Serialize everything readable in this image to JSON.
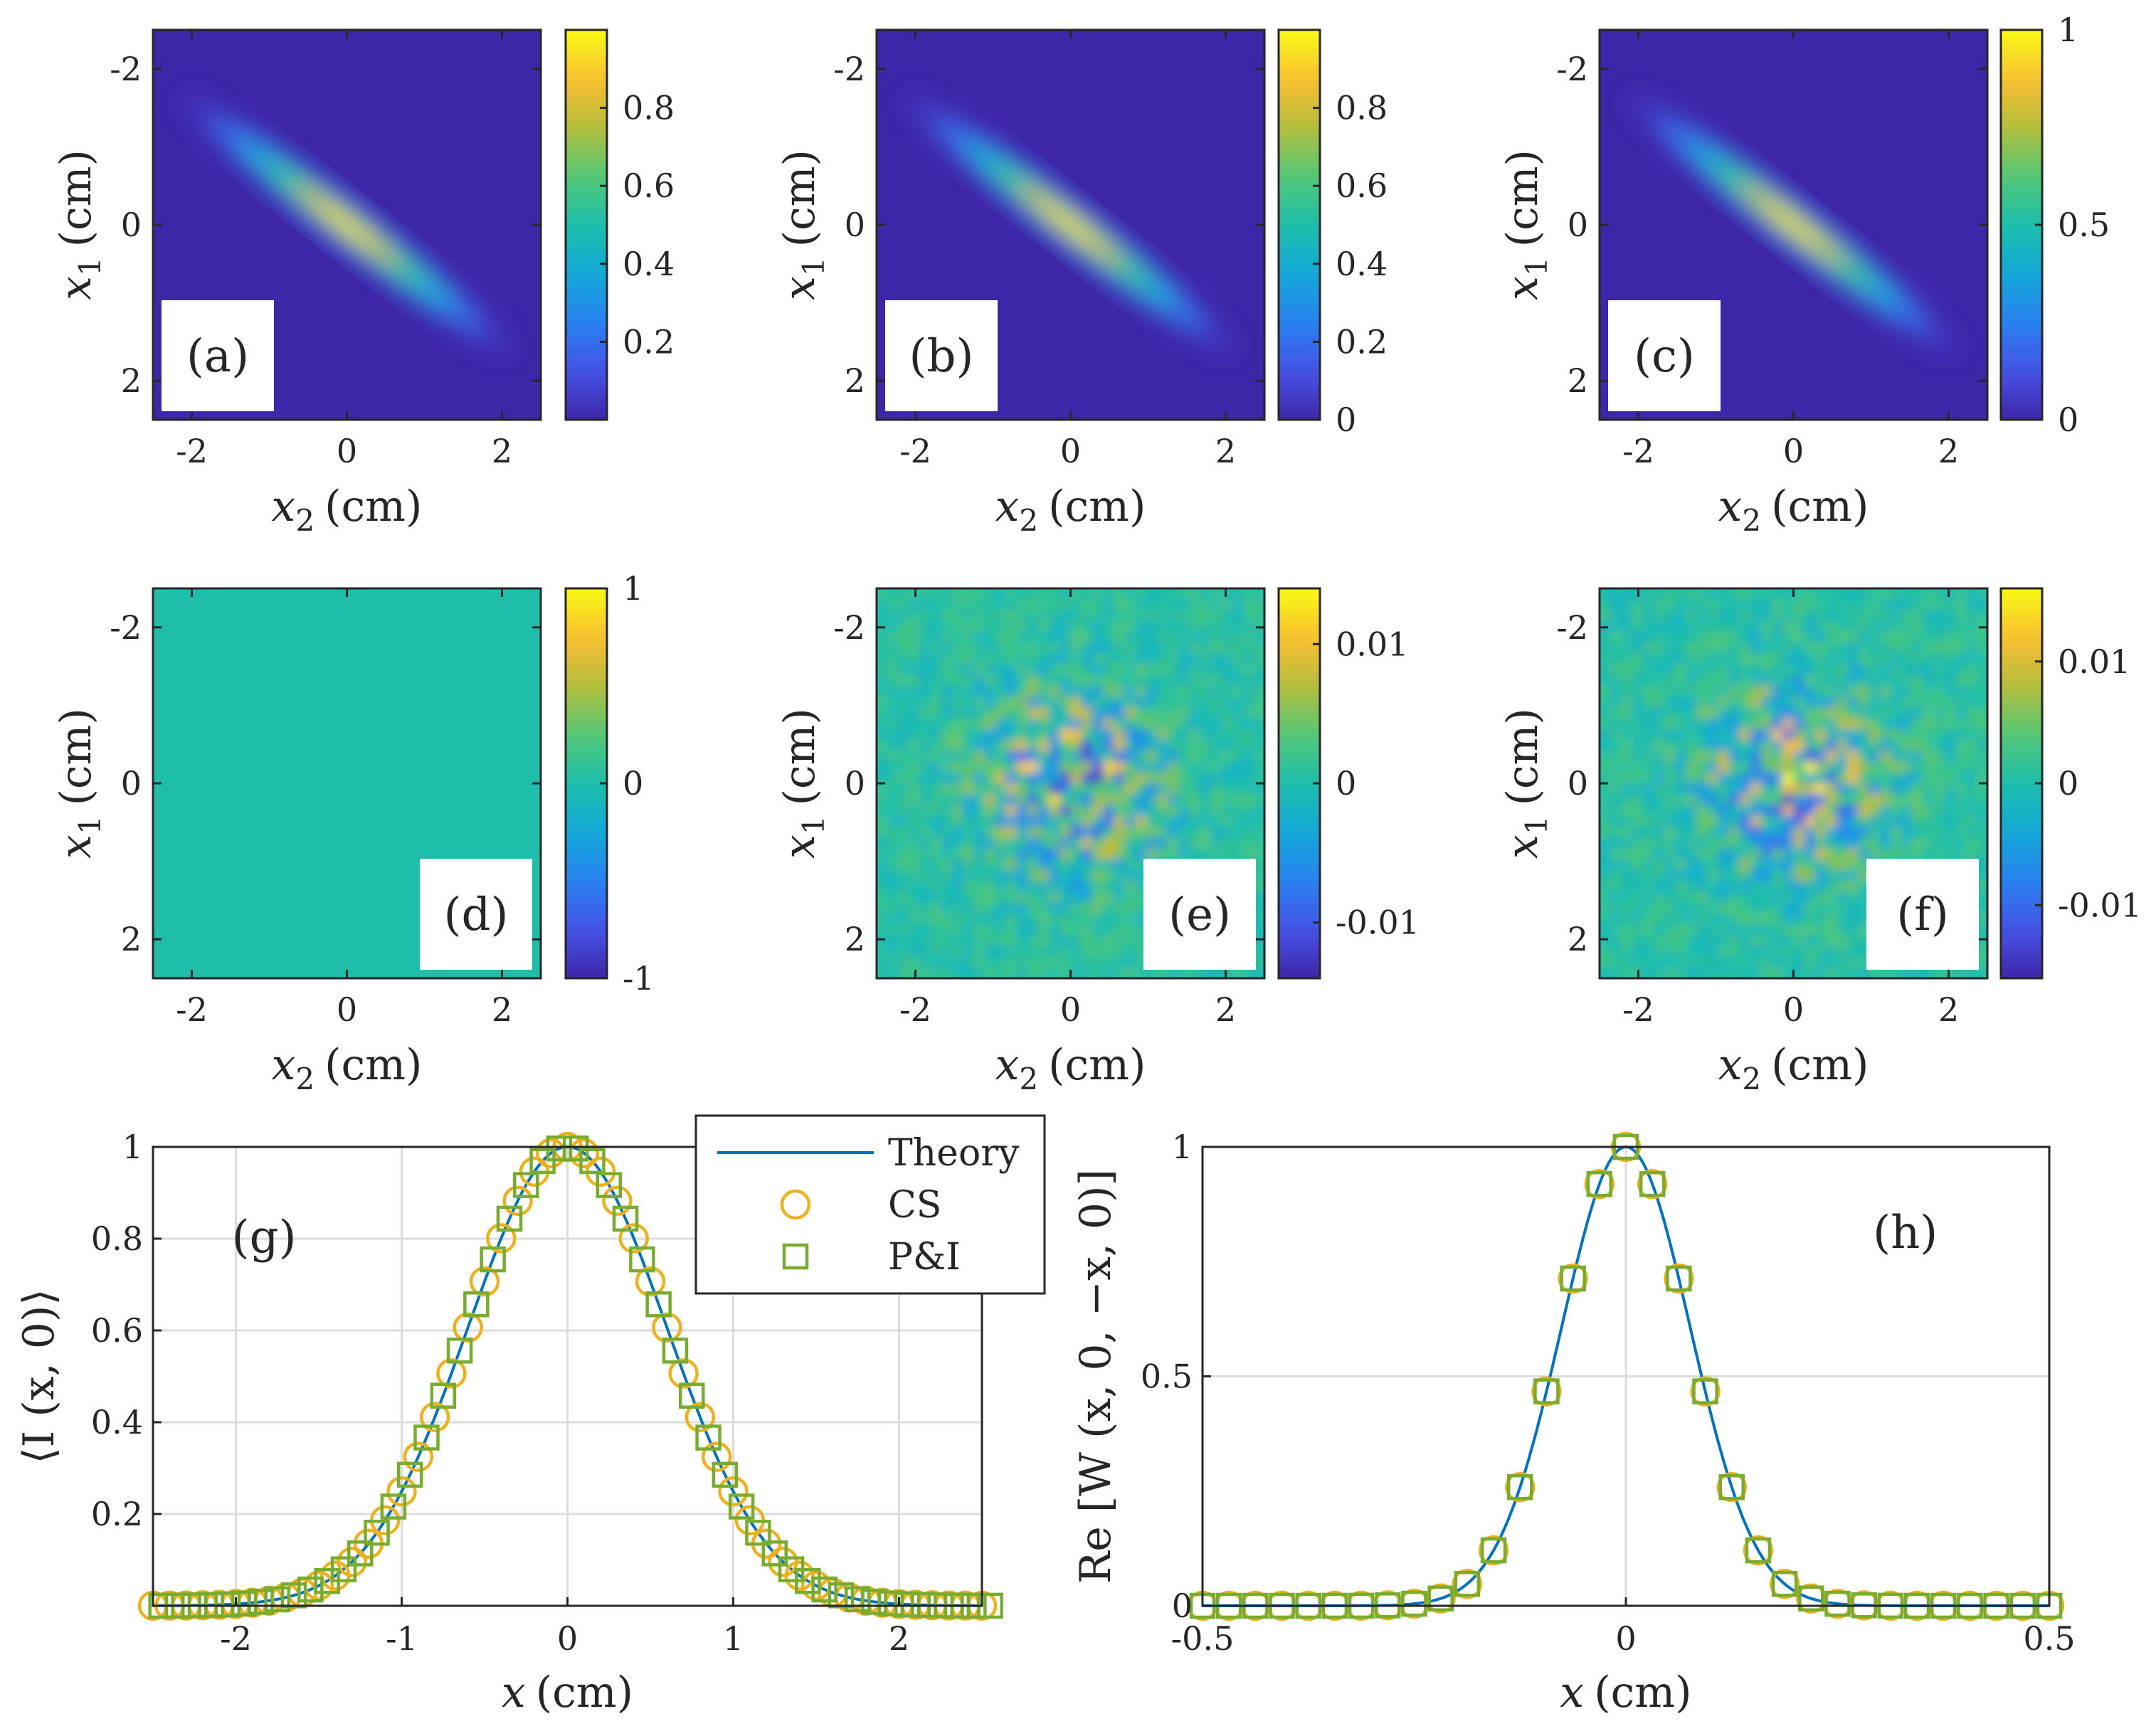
{
  "figure": {
    "background": "#ffffff",
    "text_color": "#262626"
  },
  "colors": {
    "parula_low": "#3e26a8",
    "parula_mid": "#1ebeab",
    "parula_high": "#f9fb15",
    "theory": "#0072bd",
    "cs": "#edb120",
    "pi": "#77ac30"
  },
  "chart_data": [
    {
      "type": "heatmap",
      "panel": "(a)",
      "pattern": "gaussian",
      "xlabel_var": "x",
      "xlabel_sub": "2",
      "xlabel_unit": "(cm)",
      "ylabel_var": "x",
      "ylabel_sub": "1",
      "ylabel_unit": "(cm)",
      "xlim": [
        -2.5,
        2.5
      ],
      "ylim": [
        -2.5,
        2.5
      ],
      "y_reversed": true,
      "xticks": [
        "-2",
        "0",
        "2"
      ],
      "yticks": [
        "-2",
        "0",
        "2"
      ],
      "clim": [
        0,
        1
      ],
      "cticks": [
        0.2,
        0.4,
        0.6,
        0.8
      ],
      "cticklabels": [
        "0.2",
        "0.4",
        "0.6",
        "0.8"
      ]
    },
    {
      "type": "heatmap",
      "panel": "(b)",
      "pattern": "gaussian",
      "xlabel_var": "x",
      "xlabel_sub": "2",
      "xlabel_unit": "(cm)",
      "ylabel_var": "x",
      "ylabel_sub": "1",
      "ylabel_unit": "(cm)",
      "xlim": [
        -2.5,
        2.5
      ],
      "ylim": [
        -2.5,
        2.5
      ],
      "y_reversed": true,
      "xticks": [
        "-2",
        "0",
        "2"
      ],
      "yticks": [
        "-2",
        "0",
        "2"
      ],
      "clim": [
        0,
        1
      ],
      "cticks": [
        0,
        0.2,
        0.4,
        0.6,
        0.8
      ],
      "cticklabels": [
        "0",
        "0.2",
        "0.4",
        "0.6",
        "0.8"
      ]
    },
    {
      "type": "heatmap",
      "panel": "(c)",
      "pattern": "gaussian",
      "xlabel_var": "x",
      "xlabel_sub": "2",
      "xlabel_unit": "(cm)",
      "ylabel_var": "x",
      "ylabel_sub": "1",
      "ylabel_unit": "(cm)",
      "xlim": [
        -2.5,
        2.5
      ],
      "ylim": [
        -2.5,
        2.5
      ],
      "y_reversed": true,
      "xticks": [
        "-2",
        "0",
        "2"
      ],
      "yticks": [
        "-2",
        "0",
        "2"
      ],
      "clim": [
        0,
        1
      ],
      "cticks": [
        0,
        0.5,
        1
      ],
      "cticklabels": [
        "0",
        "0.5",
        "1"
      ]
    },
    {
      "type": "heatmap",
      "panel": "(d)",
      "pattern": "flat",
      "xlabel_var": "x",
      "xlabel_sub": "2",
      "xlabel_unit": "(cm)",
      "ylabel_var": "x",
      "ylabel_sub": "1",
      "ylabel_unit": "(cm)",
      "xlim": [
        -2.5,
        2.5
      ],
      "ylim": [
        -2.5,
        2.5
      ],
      "y_reversed": true,
      "xticks": [
        "-2",
        "0",
        "2"
      ],
      "yticks": [
        "-2",
        "0",
        "2"
      ],
      "clim": [
        -1,
        1
      ],
      "cticks": [
        -1,
        0,
        1
      ],
      "cticklabels": [
        "-1",
        "0",
        "1"
      ]
    },
    {
      "type": "heatmap",
      "panel": "(e)",
      "pattern": "noise",
      "xlabel_var": "x",
      "xlabel_sub": "2",
      "xlabel_unit": "(cm)",
      "ylabel_var": "x",
      "ylabel_sub": "1",
      "ylabel_unit": "(cm)",
      "xlim": [
        -2.5,
        2.5
      ],
      "ylim": [
        -2.5,
        2.5
      ],
      "y_reversed": true,
      "xticks": [
        "-2",
        "0",
        "2"
      ],
      "yticks": [
        "-2",
        "0",
        "2"
      ],
      "clim": [
        -0.014,
        0.014
      ],
      "cticks": [
        -0.01,
        0,
        0.01
      ],
      "cticklabels": [
        "-0.01",
        "0",
        "0.01"
      ]
    },
    {
      "type": "heatmap",
      "panel": "(f)",
      "pattern": "noise",
      "xlabel_var": "x",
      "xlabel_sub": "2",
      "xlabel_unit": "(cm)",
      "ylabel_var": "x",
      "ylabel_sub": "1",
      "ylabel_unit": "(cm)",
      "xlim": [
        -2.5,
        2.5
      ],
      "ylim": [
        -2.5,
        2.5
      ],
      "y_reversed": true,
      "xticks": [
        "-2",
        "0",
        "2"
      ],
      "yticks": [
        "-2",
        "0",
        "2"
      ],
      "clim": [
        -0.016,
        0.016
      ],
      "cticks": [
        -0.01,
        0,
        0.01
      ],
      "cticklabels": [
        "-0.01",
        "0",
        "0.01"
      ]
    },
    {
      "type": "line",
      "panel": "(g)",
      "xlabel_var": "x",
      "xlabel_unit": "(cm)",
      "ylabel": "⟨I (x, 0)⟩",
      "xlim": [
        -2.5,
        2.5
      ],
      "ylim": [
        0,
        1
      ],
      "xticks": [
        -2,
        -1,
        0,
        1,
        2
      ],
      "xticklabels": [
        "-2",
        "-1",
        "0",
        "1",
        "2"
      ],
      "yticks": [
        0.2,
        0.4,
        0.6,
        0.8,
        1
      ],
      "yticklabels": [
        "0.2",
        "0.4",
        "0.6",
        "0.8",
        "1"
      ],
      "grid": true,
      "legend": {
        "position": "top-right",
        "entries": [
          "Theory",
          "CS",
          "P&I"
        ]
      },
      "series": [
        {
          "name": "Theory",
          "kind": "line",
          "sigma": 0.6,
          "x_from": -2.5,
          "x_to": 2.5
        },
        {
          "name": "CS",
          "kind": "circle",
          "sigma": 0.6,
          "x_from": -2.5,
          "x_to": 2.5,
          "step": 0.1
        },
        {
          "name": "P&I",
          "kind": "square",
          "sigma": 0.6,
          "x_from": -2.45,
          "x_to": 2.5,
          "step": 0.1
        }
      ]
    },
    {
      "type": "line",
      "panel": "(h)",
      "xlabel_var": "x",
      "xlabel_unit": "(cm)",
      "ylabel": "Re [W (x, 0, −x, 0)]",
      "xlim": [
        -0.5,
        0.5
      ],
      "ylim": [
        0,
        1
      ],
      "xticks": [
        -0.5,
        0,
        0.5
      ],
      "xticklabels": [
        "-0.5",
        "0",
        "0.5"
      ],
      "yticks": [
        0,
        0.5,
        1
      ],
      "yticklabels": [
        "0",
        "0.5",
        "1"
      ],
      "grid": true,
      "series": [
        {
          "name": "Theory",
          "kind": "line",
          "sigma": 0.076,
          "x_from": -0.5,
          "x_to": 0.5
        },
        {
          "name": "CS",
          "kind": "circle",
          "sigma": 0.076,
          "x_from": -0.5,
          "x_to": 0.5,
          "step": 0.03125
        },
        {
          "name": "P&I",
          "kind": "square",
          "sigma": 0.076,
          "x_from": -0.5,
          "x_to": 0.5,
          "step": 0.03125
        }
      ]
    }
  ]
}
